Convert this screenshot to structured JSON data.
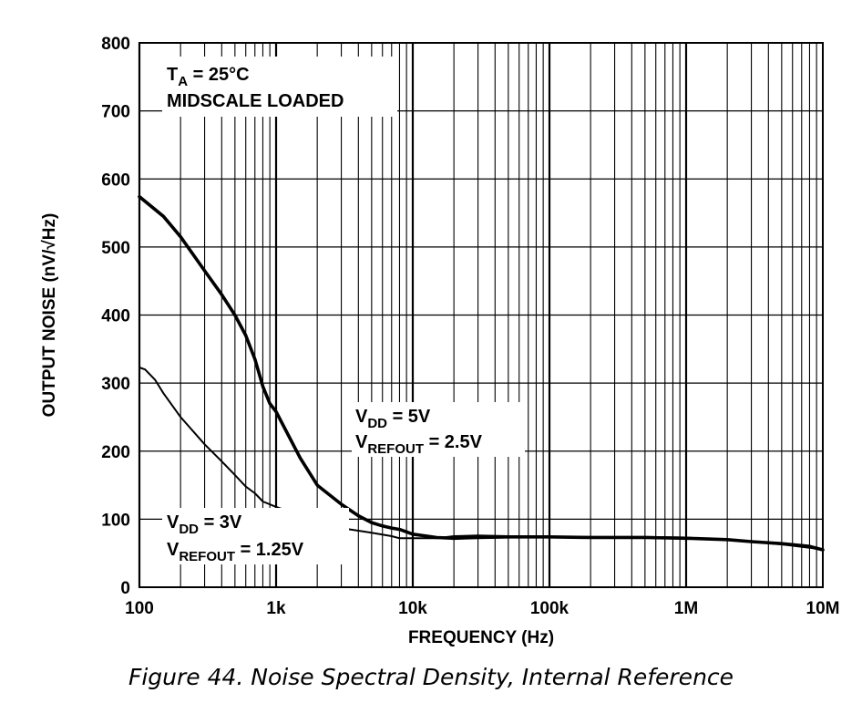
{
  "caption": "Figure 44. Noise Spectral Density, Internal Reference",
  "chart_data": {
    "type": "line",
    "title": "",
    "xlabel": "FREQUENCY (Hz)",
    "ylabel": "OUTPUT NOISE (nV/√Hz)",
    "xscale": "log",
    "xlim": [
      100,
      10000000
    ],
    "ylim": [
      0,
      800
    ],
    "grid": true,
    "x_ticks": [
      100,
      1000,
      10000,
      100000,
      1000000,
      10000000
    ],
    "x_tick_labels": [
      "100",
      "1k",
      "10k",
      "100k",
      "1M",
      "10M"
    ],
    "y_ticks": [
      0,
      100,
      200,
      300,
      400,
      500,
      600,
      700,
      800
    ],
    "y_tick_labels": [
      "0",
      "100",
      "200",
      "300",
      "400",
      "500",
      "600",
      "700",
      "800"
    ],
    "annotations": {
      "conditions": {
        "line1_main": "T",
        "line1_sub": "A",
        "line1_rest": " = 25°C",
        "line2": "MIDSCALE LOADED"
      },
      "series_5v": {
        "vdd_main": "V",
        "vdd_sub": "DD",
        "vdd_rest": " = 5V",
        "ref_main": "V",
        "ref_sub": "REFOUT",
        "ref_rest": " = 2.5V"
      },
      "series_3v": {
        "vdd_main": "V",
        "vdd_sub": "DD",
        "vdd_rest": " = 3V",
        "ref_main": "V",
        "ref_sub": "REFOUT",
        "ref_rest": " = 1.25V"
      }
    },
    "series": [
      {
        "key": "vdd_5v",
        "color": "#000000",
        "width": 3.6,
        "points": [
          [
            100,
            574
          ],
          [
            150,
            545
          ],
          [
            200,
            515
          ],
          [
            300,
            465
          ],
          [
            400,
            430
          ],
          [
            500,
            400
          ],
          [
            600,
            370
          ],
          [
            700,
            335
          ],
          [
            800,
            295
          ],
          [
            900,
            270
          ],
          [
            1000,
            258
          ],
          [
            1500,
            190
          ],
          [
            2000,
            150
          ],
          [
            3000,
            122
          ],
          [
            4000,
            105
          ],
          [
            5000,
            95
          ],
          [
            6000,
            90
          ],
          [
            7000,
            87
          ],
          [
            8000,
            85
          ],
          [
            10000,
            78
          ],
          [
            15000,
            73
          ],
          [
            20000,
            72
          ],
          [
            30000,
            73
          ],
          [
            50000,
            74
          ],
          [
            100000,
            74
          ],
          [
            200000,
            73
          ],
          [
            500000,
            73
          ],
          [
            1000000,
            72
          ],
          [
            2000000,
            70
          ],
          [
            3000000,
            67
          ],
          [
            5000000,
            64
          ],
          [
            8000000,
            60
          ],
          [
            10000000,
            55
          ]
        ]
      },
      {
        "key": "vdd_3v",
        "color": "#000000",
        "width": 2.0,
        "points": [
          [
            100,
            323
          ],
          [
            110,
            320
          ],
          [
            130,
            305
          ],
          [
            150,
            285
          ],
          [
            200,
            250
          ],
          [
            300,
            210
          ],
          [
            400,
            185
          ],
          [
            500,
            165
          ],
          [
            600,
            148
          ],
          [
            700,
            138
          ],
          [
            800,
            126
          ],
          [
            1000,
            118
          ],
          [
            1500,
            106
          ],
          [
            2000,
            96
          ],
          [
            3000,
            87
          ],
          [
            5000,
            80
          ],
          [
            7000,
            75
          ],
          [
            8000,
            72
          ],
          [
            10000,
            72
          ],
          [
            15000,
            72
          ],
          [
            20000,
            75
          ],
          [
            30000,
            76
          ],
          [
            50000,
            75
          ],
          [
            100000,
            74
          ],
          [
            200000,
            74
          ],
          [
            500000,
            74
          ],
          [
            1000000,
            73
          ],
          [
            2000000,
            70
          ],
          [
            5000000,
            63
          ],
          [
            8000000,
            58
          ],
          [
            10000000,
            55
          ]
        ]
      }
    ]
  }
}
